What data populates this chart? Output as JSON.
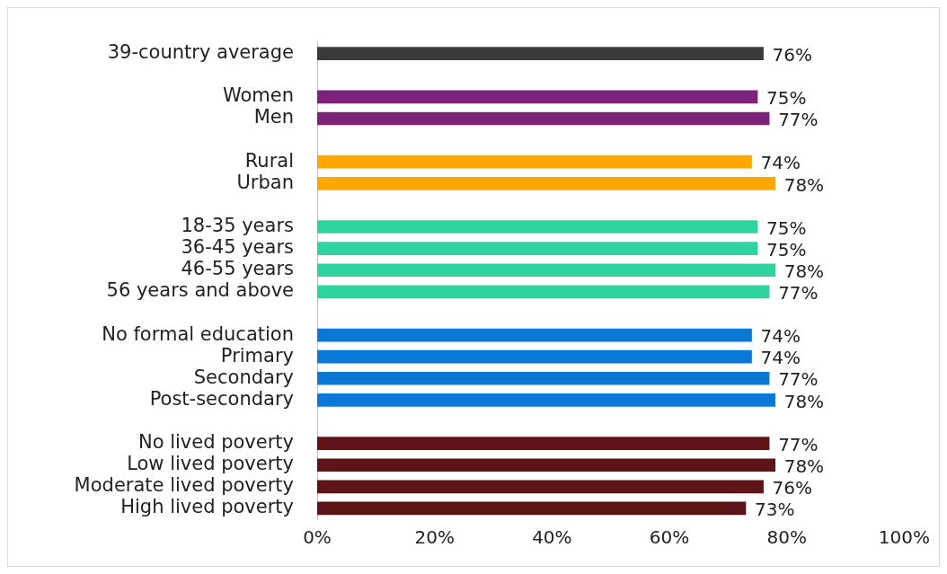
{
  "chart_data": {
    "type": "bar",
    "orientation": "horizontal",
    "categories": [
      "39-country average",
      null,
      "Women",
      "Men",
      null,
      "Rural",
      "Urban",
      null,
      "18-35 years",
      "36-45 years",
      "46-55 years",
      "56 years and above",
      null,
      "No formal education",
      "Primary",
      "Secondary",
      "Post-secondary",
      null,
      "No lived poverty",
      "Low lived poverty",
      "Moderate lived poverty",
      "High lived poverty"
    ],
    "values": [
      76,
      null,
      75,
      77,
      null,
      74,
      78,
      null,
      75,
      75,
      78,
      77,
      null,
      74,
      74,
      77,
      78,
      null,
      77,
      78,
      76,
      73
    ],
    "value_labels": [
      "76%",
      null,
      "75%",
      "77%",
      null,
      "74%",
      "78%",
      null,
      "75%",
      "75%",
      "78%",
      "77%",
      null,
      "74%",
      "74%",
      "77%",
      "78%",
      null,
      "77%",
      "78%",
      "76%",
      "73%"
    ],
    "colors": [
      "#3a3a3a",
      null,
      "#7b2378",
      "#7b2378",
      null,
      "#ffa600",
      "#ffa600",
      null,
      "#2ed3a0",
      "#2ed3a0",
      "#2ed3a0",
      "#2ed3a0",
      null,
      "#0a78d4",
      "#0a78d4",
      "#0a78d4",
      "#0a78d4",
      null,
      "#5c1416",
      "#5c1416",
      "#5c1416",
      "#5c1416"
    ],
    "xlim": [
      0,
      100
    ],
    "xticks": [
      {
        "value": 0,
        "label": "0%"
      },
      {
        "value": 20,
        "label": "20%"
      },
      {
        "value": 40,
        "label": "40%"
      },
      {
        "value": 60,
        "label": "60%"
      },
      {
        "value": 80,
        "label": "80%"
      },
      {
        "value": 100,
        "label": "100%"
      }
    ],
    "grid": false,
    "legend": false
  }
}
